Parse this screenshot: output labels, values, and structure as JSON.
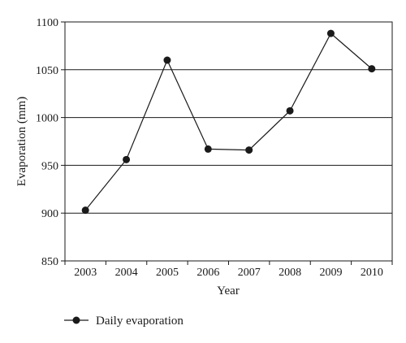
{
  "chart_data": {
    "type": "line",
    "title": "",
    "xlabel": "Year",
    "ylabel": "Evaporation (mm)",
    "categories": [
      "2003",
      "2004",
      "2005",
      "2006",
      "2007",
      "2008",
      "2009",
      "2010"
    ],
    "series": [
      {
        "name": "Daily evaporation",
        "values": [
          903,
          956,
          1060,
          967,
          966,
          1007,
          1088,
          1051
        ]
      }
    ],
    "ylim": [
      850,
      1100
    ],
    "yticks": [
      850,
      900,
      950,
      1000,
      1050,
      1100
    ],
    "grid": "horizontal",
    "legend_position": "bottom-left",
    "colors": {
      "line": "#1a1a1a",
      "grid": "#1a1a1a"
    }
  }
}
